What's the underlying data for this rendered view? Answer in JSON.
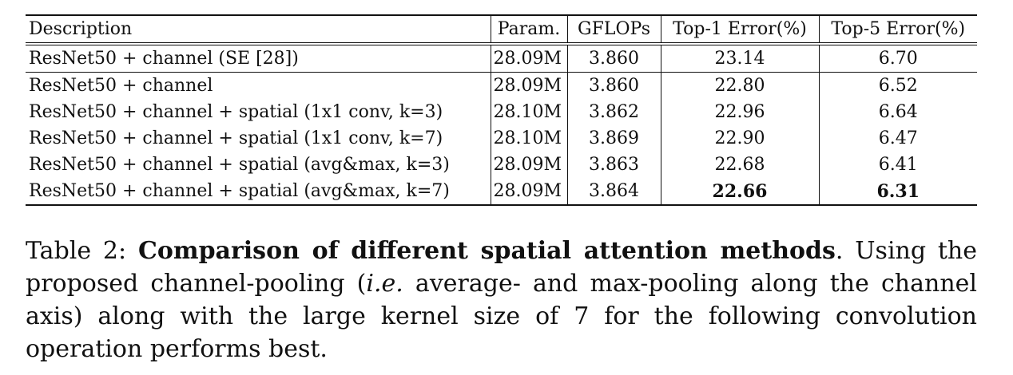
{
  "table": {
    "headers": {
      "description": "Description",
      "param": "Param.",
      "gflops": "GFLOPs",
      "top1": "Top-1 Error(%)",
      "top5": "Top-5 Error(%)"
    },
    "rows": [
      {
        "description": "ResNet50 + channel (SE [28])",
        "param": "28.09M",
        "gflops": "3.860",
        "top1": "23.14",
        "top5": "6.70"
      },
      {
        "description": "ResNet50 + channel",
        "param": "28.09M",
        "gflops": "3.860",
        "top1": "22.80",
        "top5": "6.52"
      },
      {
        "description": "ResNet50 + channel + spatial (1x1 conv, k=3)",
        "param": "28.10M",
        "gflops": "3.862",
        "top1": "22.96",
        "top5": "6.64"
      },
      {
        "description": "ResNet50 + channel + spatial (1x1 conv, k=7)",
        "param": "28.10M",
        "gflops": "3.869",
        "top1": "22.90",
        "top5": "6.47"
      },
      {
        "description": "ResNet50 + channel + spatial (avg&max, k=3)",
        "param": "28.09M",
        "gflops": "3.863",
        "top1": "22.68",
        "top5": "6.41"
      },
      {
        "description": "ResNet50 + channel + spatial (avg&max, k=7)",
        "param": "28.09M",
        "gflops": "3.864",
        "top1": "22.66",
        "top5": "6.31"
      }
    ]
  },
  "caption": {
    "label": "Table 2: ",
    "title": "Comparison of different spatial attention methods",
    "text_1": ". Using the proposed channel-pooling (",
    "ie": "i.e.",
    "text_2": " average- and max-pooling along the channel axis) along with the large kernel size of 7 for the following convolution operation performs best."
  }
}
